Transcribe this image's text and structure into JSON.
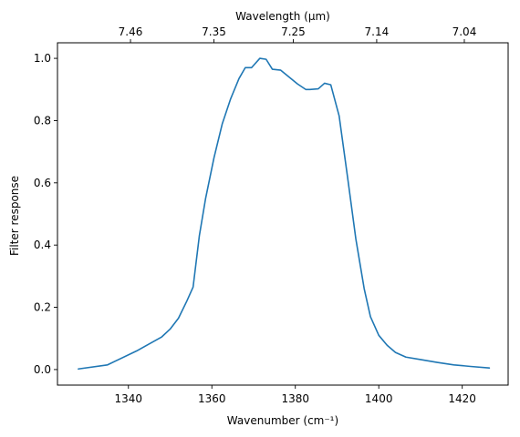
{
  "chart_data": {
    "type": "line",
    "xlabel": "Wavenumber (cm⁻¹)",
    "ylabel": "Filter response",
    "top_axis_label": "Wavelength (μm)",
    "xlim": [
      1323,
      1431
    ],
    "ylim": [
      -0.05,
      1.05
    ],
    "x_ticks": [
      1340,
      1360,
      1380,
      1400,
      1420
    ],
    "y_ticks": [
      0.0,
      0.2,
      0.4,
      0.6,
      0.8,
      1.0
    ],
    "top_ticks": [
      {
        "value": 1340.5,
        "label": "7.46"
      },
      {
        "value": 1360.5,
        "label": "7.35"
      },
      {
        "value": 1379.5,
        "label": "7.25"
      },
      {
        "value": 1399.5,
        "label": "7.14"
      },
      {
        "value": 1420.5,
        "label": "7.04"
      }
    ],
    "grid": false,
    "colors": {
      "series": "#1f77b4"
    },
    "series": [
      {
        "x": [
          1328,
          1335,
          1342,
          1348,
          1350,
          1352,
          1354,
          1355.5,
          1357,
          1358.5,
          1360.5,
          1362.5,
          1364.5,
          1366.5,
          1368,
          1369.5,
          1371.5,
          1373,
          1374.5,
          1376.5,
          1378.5,
          1380.5,
          1382.5,
          1383.5,
          1385.5,
          1387,
          1388.5,
          1390.5,
          1392.5,
          1394.5,
          1395.5,
          1396.5,
          1398,
          1400,
          1402,
          1404,
          1406.5,
          1410,
          1414,
          1418,
          1422,
          1426.5
        ],
        "y": [
          0.002,
          0.015,
          0.06,
          0.105,
          0.13,
          0.165,
          0.22,
          0.265,
          0.43,
          0.55,
          0.68,
          0.79,
          0.87,
          0.935,
          0.97,
          0.97,
          1.0,
          0.997,
          0.965,
          0.962,
          0.94,
          0.918,
          0.9,
          0.9,
          0.902,
          0.92,
          0.915,
          0.815,
          0.62,
          0.42,
          0.34,
          0.26,
          0.17,
          0.11,
          0.078,
          0.055,
          0.04,
          0.032,
          0.023,
          0.015,
          0.01,
          0.005
        ]
      }
    ]
  }
}
